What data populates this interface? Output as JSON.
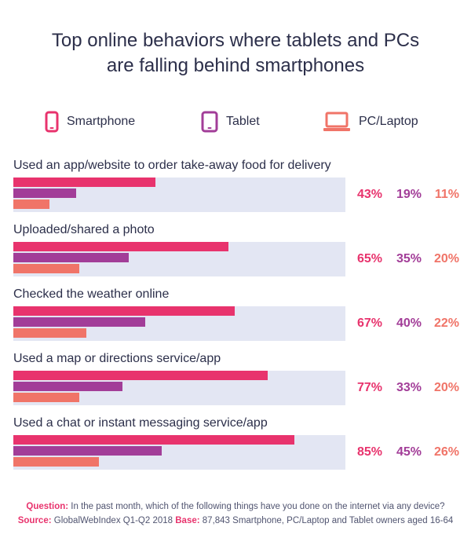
{
  "title": {
    "line1": "Top online behaviors where tablets and PCs",
    "line2": "are falling behind smartphones"
  },
  "legend": [
    {
      "name": "Smartphone",
      "icon": "smartphone-icon",
      "color": "#e8336d"
    },
    {
      "name": "Tablet",
      "icon": "tablet-icon",
      "color": "#a23d98"
    },
    {
      "name": "PC/Laptop",
      "icon": "laptop-icon",
      "color": "#f07468"
    }
  ],
  "colors": {
    "smartphone": "#e8336d",
    "tablet": "#a23d98",
    "pc": "#f07468",
    "panel": "#e3e6f3"
  },
  "chart_data": {
    "type": "bar",
    "orientation": "horizontal",
    "title": "Top online behaviors where tablets and PCs are falling behind smartphones",
    "categories": [
      "Used an app/website to order take-away food for delivery",
      "Uploaded/shared a photo",
      "Checked the weather online",
      "Used a map or directions service/app",
      "Used a chat or instant messaging service/app"
    ],
    "series": [
      {
        "name": "Smartphone",
        "values": [
          43,
          65,
          67,
          77,
          85
        ]
      },
      {
        "name": "Tablet",
        "values": [
          19,
          35,
          40,
          33,
          45
        ]
      },
      {
        "name": "PC/Laptop",
        "values": [
          11,
          20,
          22,
          20,
          26
        ]
      }
    ],
    "value_labels": [
      [
        "43%",
        "19%",
        "11%"
      ],
      [
        "65%",
        "35%",
        "20%"
      ],
      [
        "67%",
        "40%",
        "22%"
      ],
      [
        "77%",
        "33%",
        "20%"
      ],
      [
        "85%",
        "45%",
        "26%"
      ]
    ],
    "xlim": [
      0,
      100
    ],
    "grid": false,
    "legend_position": "top"
  },
  "footer": {
    "question_label": "Question:",
    "question_text": " In the past month, which of the following things have you done on the internet via any device?",
    "source_label": "Source:",
    "source_text": " GlobalWebIndex Q1-Q2 2018 ",
    "base_label": "Base:",
    "base_text": " 87,843 Smartphone, PC/Laptop and Tablet owners aged 16-64"
  }
}
